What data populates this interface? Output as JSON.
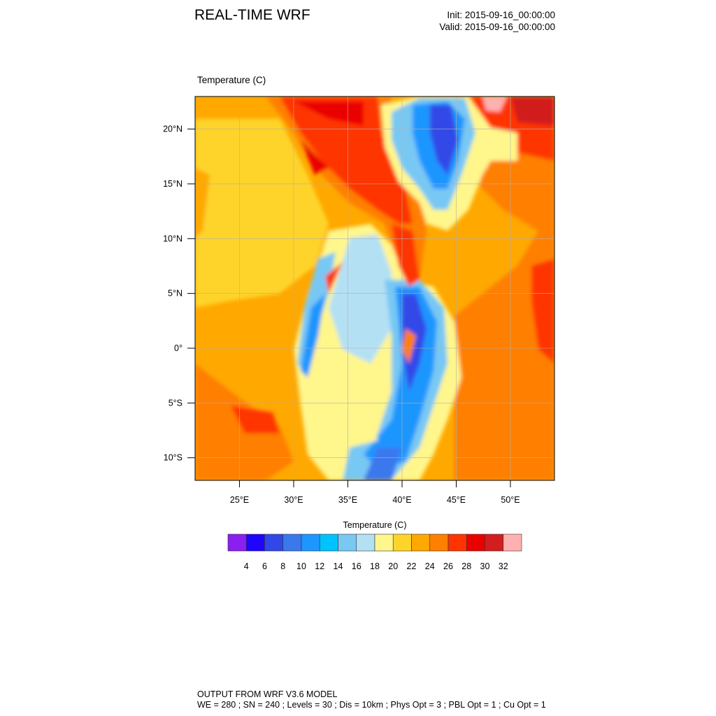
{
  "header": {
    "title": "REAL-TIME WRF",
    "init": "Init: 2015-09-16_00:00:00",
    "valid": "Valid: 2015-09-16_00:00:00"
  },
  "field_label": "Temperature   (C)",
  "map": {
    "lat_ticks": [
      "20°N",
      "15°N",
      "10°N",
      "5°N",
      "0°",
      "5°S",
      "10°S"
    ],
    "lat_values": [
      20,
      15,
      10,
      5,
      0,
      -5,
      -10
    ],
    "lon_ticks": [
      "25°E",
      "30°E",
      "35°E",
      "40°E",
      "45°E",
      "50°E"
    ],
    "lon_values": [
      25,
      30,
      35,
      40,
      45,
      50
    ]
  },
  "colorbar": {
    "title": "Temperature  (C)",
    "labels": [
      "4",
      "6",
      "8",
      "10",
      "12",
      "14",
      "16",
      "18",
      "20",
      "22",
      "24",
      "26",
      "28",
      "30",
      "32"
    ],
    "colors": [
      "#8a1ff0",
      "#1f05ff",
      "#3048e8",
      "#3a78ee",
      "#1e96ff",
      "#00c2ff",
      "#78c8f4",
      "#b4e0f4",
      "#fff68c",
      "#ffd42a",
      "#ffa800",
      "#ff7f00",
      "#ff3400",
      "#eb0000",
      "#d21e1e",
      "#ffb1b1"
    ]
  },
  "footer": {
    "line1": "OUTPUT FROM WRF V3.6 MODEL",
    "line2": "WE = 280 ; SN = 240 ; Levels = 30 ; Dis = 10km ; Phys Opt = 3 ; PBL Opt = 1 ; Cu Opt = 1"
  }
}
